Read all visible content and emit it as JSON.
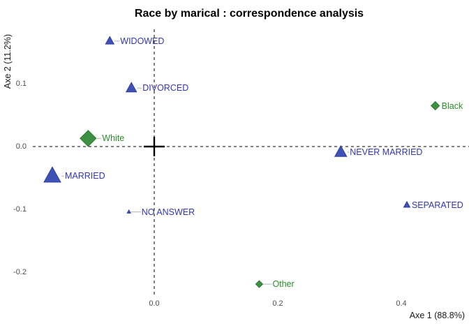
{
  "title": "Race by marical : correspondence analysis",
  "colors": {
    "background": "#ffffff",
    "marital_marker": "#3f51b5",
    "marital_marker_stroke": "#31409c",
    "marital_label": "#3236b2",
    "race_marker": "#3d9142",
    "race_marker_stroke": "#2e7a33",
    "race_label": "#2c8c2c",
    "tick_label": "#4d4d4d",
    "axis_label": "#1a1a1a",
    "dashed_line": "#000000",
    "origin_cross": "#000000",
    "connector": "#c0c0c0"
  },
  "chart_data": {
    "type": "scatter",
    "title": "Race by marical : correspondence analysis",
    "xlabel": "Axe 1 (88.8%)",
    "ylabel": "Axe 2 (11.2%)",
    "xlim": [
      -0.25,
      0.51
    ],
    "ylim": [
      -0.26,
      0.19
    ],
    "x_ticks": [
      "0.0",
      "0.2",
      "0.4"
    ],
    "x_tick_values": [
      0.0,
      0.2,
      0.4
    ],
    "y_ticks": [
      "0.1",
      "0.0",
      "-0.1",
      "-0.2"
    ],
    "y_tick_values": [
      0.1,
      0.0,
      -0.1,
      -0.2
    ],
    "grid": false,
    "legend_position": "none",
    "origin_crosshair": true,
    "dashed_reference_lines": {
      "horizontal_at_y": 0.0,
      "vertical_at_x": 0.0
    },
    "series": [
      {
        "name": "marital-status-rows",
        "marker": "triangle",
        "color": "#3f51b5",
        "stroke": "#31409c",
        "label_color": "#3236b2",
        "points": [
          {
            "label": "WIDOWED",
            "x": -0.072,
            "y": 0.168,
            "size": 12,
            "connector": true,
            "label_offset": 15
          },
          {
            "label": "DIVORCED",
            "x": -0.037,
            "y": 0.093,
            "size": 15,
            "connector": true,
            "label_offset": 16
          },
          {
            "label": "MARRIED",
            "x": -0.165,
            "y": -0.047,
            "size": 24,
            "connector": true,
            "label_offset": 18
          },
          {
            "label": "NEVER MARRIED",
            "x": 0.302,
            "y": -0.009,
            "size": 17,
            "connector": true,
            "label_offset": 13
          },
          {
            "label": "SEPARATED",
            "x": 0.409,
            "y": -0.093,
            "size": 9,
            "connector": false,
            "label_offset": 7
          },
          {
            "label": "NO ANSWER",
            "x": -0.041,
            "y": -0.104,
            "size": 5,
            "connector": true,
            "label_offset": 18
          }
        ]
      },
      {
        "name": "race-columns",
        "marker": "diamond",
        "color": "#3d9142",
        "stroke": "#2e7a33",
        "label_color": "#2c8c2c",
        "points": [
          {
            "label": "White",
            "x": -0.107,
            "y": 0.013,
            "size": 23,
            "connector": true,
            "label_offset": 20
          },
          {
            "label": "Black",
            "x": 0.455,
            "y": 0.065,
            "size": 12,
            "connector": false,
            "label_offset": 9
          },
          {
            "label": "Other",
            "x": 0.17,
            "y": -0.219,
            "size": 10,
            "connector": true,
            "label_offset": 19
          }
        ]
      }
    ]
  }
}
